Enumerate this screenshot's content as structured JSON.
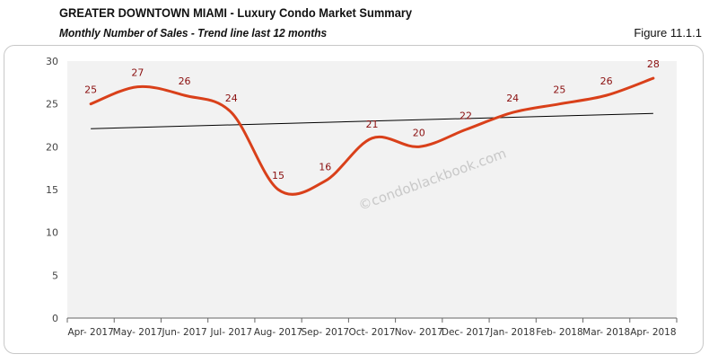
{
  "header": {
    "title": "GREATER DOWNTOWN MIAMI - Luxury Condo Market Summary",
    "subtitle": "Monthly Number of Sales - Trend line last 12 months",
    "figure": "Figure 11.1.1"
  },
  "watermark": "©condoblackbook.com",
  "chart_data": {
    "type": "line",
    "title": "",
    "xlabel": "",
    "ylabel": "",
    "categories": [
      "Apr- 2017",
      "May- 2017",
      "Jun- 2017",
      "Jul- 2017",
      "Aug- 2017",
      "Sep- 2017",
      "Oct- 2017",
      "Nov- 2017",
      "Dec- 2017",
      "Jan- 2018",
      "Feb- 2018",
      "Mar- 2018",
      "Apr- 2018"
    ],
    "series": [
      {
        "values": [
          25,
          27,
          26,
          24,
          15,
          16,
          21,
          20,
          22,
          24,
          25,
          26,
          28
        ],
        "color": "#d9401a",
        "smooth": true,
        "data_labels": true
      }
    ],
    "trendline": {
      "type": "linear",
      "color": "#000000"
    },
    "ylim": [
      0,
      30
    ],
    "yticks": [
      0,
      5,
      10,
      15,
      20,
      25,
      30
    ],
    "label_color": "#8b1010",
    "plot_background": "#f2f2f2",
    "grid": false,
    "legend": "none"
  }
}
